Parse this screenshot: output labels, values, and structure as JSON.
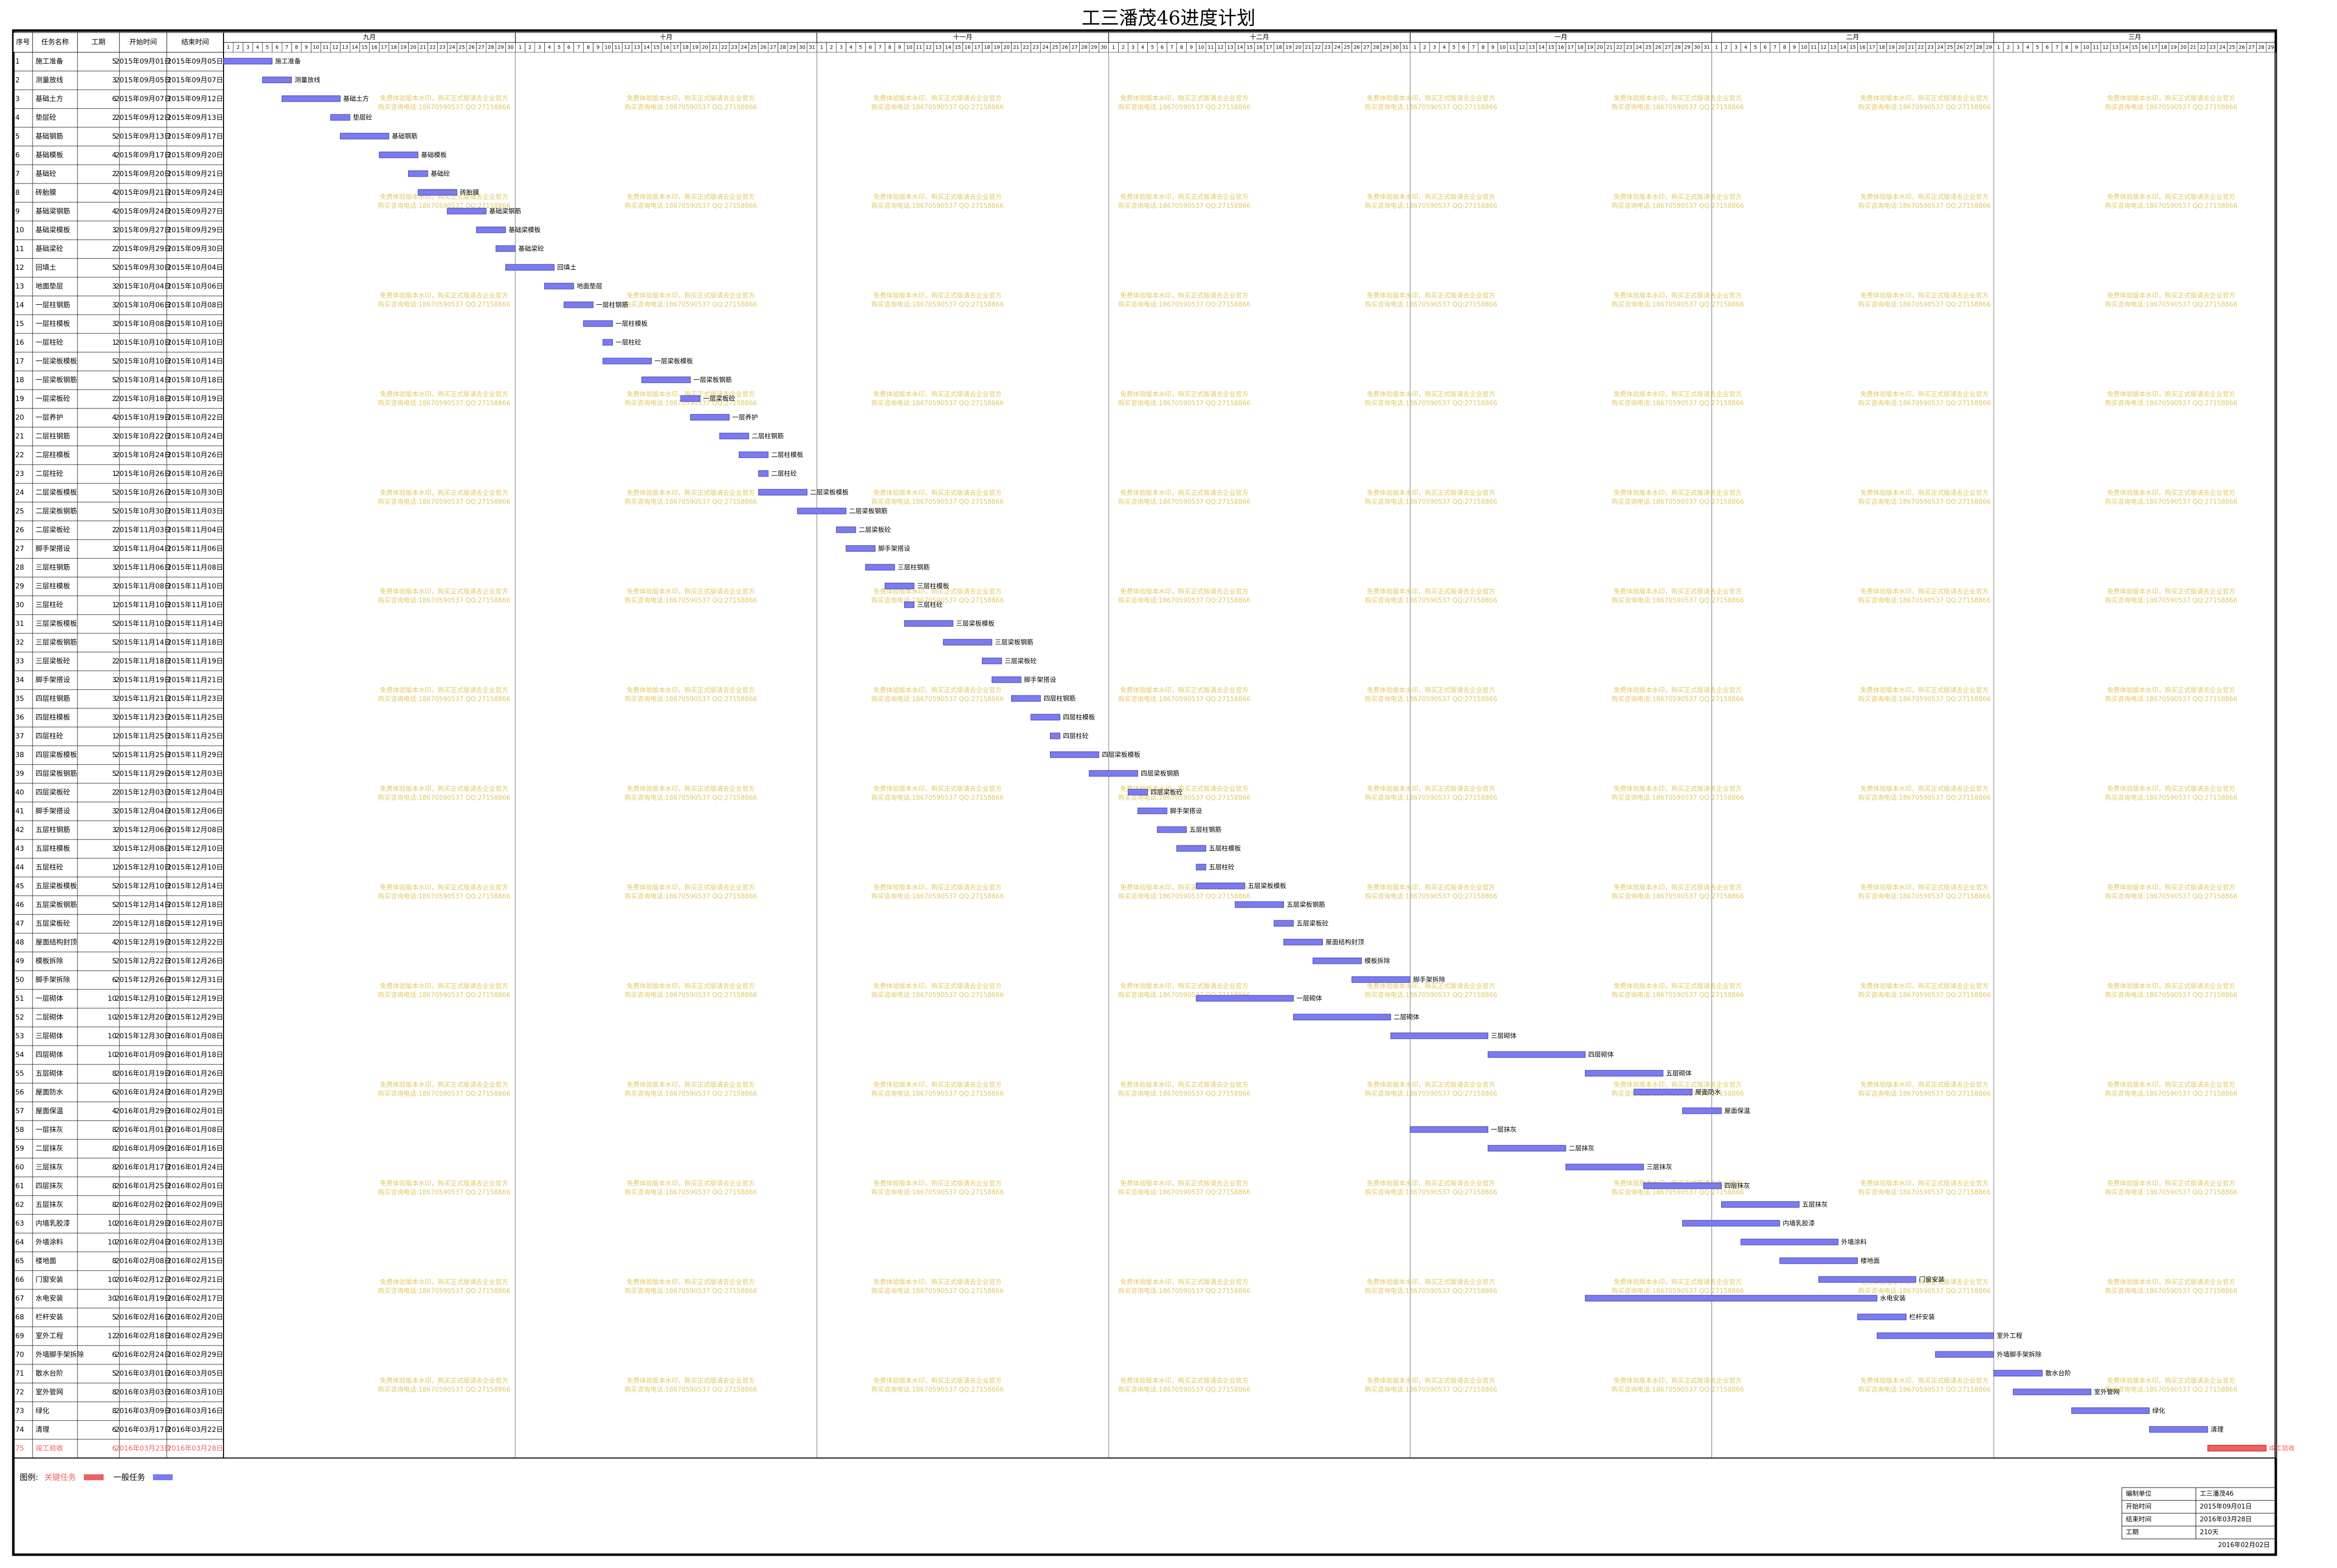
{
  "header": {
    "title": "工三潘茂46进度计划"
  },
  "table": {
    "columns": [
      "序号",
      "任务名称",
      "工期",
      "开始时间",
      "结束时间"
    ],
    "rows": [
      {
        "id": 1,
        "name": "施工准备",
        "duration": 5,
        "start": "2015年09月01日",
        "end": "2015年09月05日"
      },
      {
        "id": 2,
        "name": "测量放线",
        "duration": 3,
        "start": "2015年09月05日",
        "end": "2015年09月07日"
      },
      {
        "id": 3,
        "name": "基础土方",
        "duration": 6,
        "start": "2015年09月07日",
        "end": "2015年09月12日"
      },
      {
        "id": 4,
        "name": "垫层砼",
        "duration": 2,
        "start": "2015年09月12日",
        "end": "2015年09月13日"
      },
      {
        "id": 5,
        "name": "基础钢筋",
        "duration": 5,
        "start": "2015年09月13日",
        "end": "2015年09月17日"
      },
      {
        "id": 6,
        "name": "基础模板",
        "duration": 4,
        "start": "2015年09月17日",
        "end": "2015年09月20日"
      },
      {
        "id": 7,
        "name": "基础砼",
        "duration": 2,
        "start": "2015年09月20日",
        "end": "2015年09月21日"
      },
      {
        "id": 8,
        "name": "砖胎膜",
        "duration": 4,
        "start": "2015年09月21日",
        "end": "2015年09月24日"
      },
      {
        "id": 9,
        "name": "基础梁钢筋",
        "duration": 4,
        "start": "2015年09月24日",
        "end": "2015年09月27日"
      },
      {
        "id": 10,
        "name": "基础梁模板",
        "duration": 3,
        "start": "2015年09月27日",
        "end": "2015年09月29日"
      },
      {
        "id": 11,
        "name": "基础梁砼",
        "duration": 2,
        "start": "2015年09月29日",
        "end": "2015年09月30日"
      },
      {
        "id": 12,
        "name": "回填土",
        "duration": 5,
        "start": "2015年09月30日",
        "end": "2015年10月04日"
      },
      {
        "id": 13,
        "name": "地面垫层",
        "duration": 3,
        "start": "2015年10月04日",
        "end": "2015年10月06日"
      },
      {
        "id": 14,
        "name": "一层柱钢筋",
        "duration": 3,
        "start": "2015年10月06日",
        "end": "2015年10月08日"
      },
      {
        "id": 15,
        "name": "一层柱模板",
        "duration": 3,
        "start": "2015年10月08日",
        "end": "2015年10月10日"
      },
      {
        "id": 16,
        "name": "一层柱砼",
        "duration": 1,
        "start": "2015年10月10日",
        "end": "2015年10月10日"
      },
      {
        "id": 17,
        "name": "一层梁板模板",
        "duration": 5,
        "start": "2015年10月10日",
        "end": "2015年10月14日"
      },
      {
        "id": 18,
        "name": "一层梁板钢筋",
        "duration": 5,
        "start": "2015年10月14日",
        "end": "2015年10月18日"
      },
      {
        "id": 19,
        "name": "一层梁板砼",
        "duration": 2,
        "start": "2015年10月18日",
        "end": "2015年10月19日"
      },
      {
        "id": 20,
        "name": "一层养护",
        "duration": 4,
        "start": "2015年10月19日",
        "end": "2015年10月22日"
      },
      {
        "id": 21,
        "name": "二层柱钢筋",
        "duration": 3,
        "start": "2015年10月22日",
        "end": "2015年10月24日"
      },
      {
        "id": 22,
        "name": "二层柱模板",
        "duration": 3,
        "start": "2015年10月24日",
        "end": "2015年10月26日"
      },
      {
        "id": 23,
        "name": "二层柱砼",
        "duration": 1,
        "start": "2015年10月26日",
        "end": "2015年10月26日"
      },
      {
        "id": 24,
        "name": "二层梁板模板",
        "duration": 5,
        "start": "2015年10月26日",
        "end": "2015年10月30日"
      },
      {
        "id": 25,
        "name": "二层梁板钢筋",
        "duration": 5,
        "start": "2015年10月30日",
        "end": "2015年11月03日"
      },
      {
        "id": 26,
        "name": "二层梁板砼",
        "duration": 2,
        "start": "2015年11月03日",
        "end": "2015年11月04日"
      },
      {
        "id": 27,
        "name": "脚手架搭设",
        "duration": 3,
        "start": "2015年11月04日",
        "end": "2015年11月06日"
      },
      {
        "id": 28,
        "name": "三层柱钢筋",
        "duration": 3,
        "start": "2015年11月06日",
        "end": "2015年11月08日"
      },
      {
        "id": 29,
        "name": "三层柱模板",
        "duration": 3,
        "start": "2015年11月08日",
        "end": "2015年11月10日"
      },
      {
        "id": 30,
        "name": "三层柱砼",
        "duration": 1,
        "start": "2015年11月10日",
        "end": "2015年11月10日"
      },
      {
        "id": 31,
        "name": "三层梁板模板",
        "duration": 5,
        "start": "2015年11月10日",
        "end": "2015年11月14日"
      },
      {
        "id": 32,
        "name": "三层梁板钢筋",
        "duration": 5,
        "start": "2015年11月14日",
        "end": "2015年11月18日"
      },
      {
        "id": 33,
        "name": "三层梁板砼",
        "duration": 2,
        "start": "2015年11月18日",
        "end": "2015年11月19日"
      },
      {
        "id": 34,
        "name": "脚手架搭设",
        "duration": 3,
        "start": "2015年11月19日",
        "end": "2015年11月21日"
      },
      {
        "id": 35,
        "name": "四层柱钢筋",
        "duration": 3,
        "start": "2015年11月21日",
        "end": "2015年11月23日"
      },
      {
        "id": 36,
        "name": "四层柱模板",
        "duration": 3,
        "start": "2015年11月23日",
        "end": "2015年11月25日"
      },
      {
        "id": 37,
        "name": "四层柱砼",
        "duration": 1,
        "start": "2015年11月25日",
        "end": "2015年11月25日"
      },
      {
        "id": 38,
        "name": "四层梁板模板",
        "duration": 5,
        "start": "2015年11月25日",
        "end": "2015年11月29日"
      },
      {
        "id": 39,
        "name": "四层梁板钢筋",
        "duration": 5,
        "start": "2015年11月29日",
        "end": "2015年12月03日"
      },
      {
        "id": 40,
        "name": "四层梁板砼",
        "duration": 2,
        "start": "2015年12月03日",
        "end": "2015年12月04日"
      },
      {
        "id": 41,
        "name": "脚手架搭设",
        "duration": 3,
        "start": "2015年12月04日",
        "end": "2015年12月06日"
      },
      {
        "id": 42,
        "name": "五层柱钢筋",
        "duration": 3,
        "start": "2015年12月06日",
        "end": "2015年12月08日"
      },
      {
        "id": 43,
        "name": "五层柱模板",
        "duration": 3,
        "start": "2015年12月08日",
        "end": "2015年12月10日"
      },
      {
        "id": 44,
        "name": "五层柱砼",
        "duration": 1,
        "start": "2015年12月10日",
        "end": "2015年12月10日"
      },
      {
        "id": 45,
        "name": "五层梁板模板",
        "duration": 5,
        "start": "2015年12月10日",
        "end": "2015年12月14日"
      },
      {
        "id": 46,
        "name": "五层梁板钢筋",
        "duration": 5,
        "start": "2015年12月14日",
        "end": "2015年12月18日"
      },
      {
        "id": 47,
        "name": "五层梁板砼",
        "duration": 2,
        "start": "2015年12月18日",
        "end": "2015年12月19日"
      },
      {
        "id": 48,
        "name": "屋面结构封顶",
        "duration": 4,
        "start": "2015年12月19日",
        "end": "2015年12月22日"
      },
      {
        "id": 49,
        "name": "模板拆除",
        "duration": 5,
        "start": "2015年12月22日",
        "end": "2015年12月26日"
      },
      {
        "id": 50,
        "name": "脚手架拆除",
        "duration": 6,
        "start": "2015年12月26日",
        "end": "2015年12月31日"
      },
      {
        "id": 51,
        "name": "一层砌体",
        "duration": 10,
        "start": "2015年12月10日",
        "end": "2015年12月19日"
      },
      {
        "id": 52,
        "name": "二层砌体",
        "duration": 10,
        "start": "2015年12月20日",
        "end": "2015年12月29日"
      },
      {
        "id": 53,
        "name": "三层砌体",
        "duration": 10,
        "start": "2015年12月30日",
        "end": "2016年01月08日"
      },
      {
        "id": 54,
        "name": "四层砌体",
        "duration": 10,
        "start": "2016年01月09日",
        "end": "2016年01月18日"
      },
      {
        "id": 55,
        "name": "五层砌体",
        "duration": 8,
        "start": "2016年01月19日",
        "end": "2016年01月26日"
      },
      {
        "id": 56,
        "name": "屋面防水",
        "duration": 6,
        "start": "2016年01月24日",
        "end": "2016年01月29日"
      },
      {
        "id": 57,
        "name": "屋面保温",
        "duration": 4,
        "start": "2016年01月29日",
        "end": "2016年02月01日"
      },
      {
        "id": 58,
        "name": "一层抹灰",
        "duration": 8,
        "start": "2016年01月01日",
        "end": "2016年01月08日"
      },
      {
        "id": 59,
        "name": "二层抹灰",
        "duration": 8,
        "start": "2016年01月09日",
        "end": "2016年01月16日"
      },
      {
        "id": 60,
        "name": "三层抹灰",
        "duration": 8,
        "start": "2016年01月17日",
        "end": "2016年01月24日"
      },
      {
        "id": 61,
        "name": "四层抹灰",
        "duration": 8,
        "start": "2016年01月25日",
        "end": "2016年02月01日"
      },
      {
        "id": 62,
        "name": "五层抹灰",
        "duration": 8,
        "start": "2016年02月02日",
        "end": "2016年02月09日"
      },
      {
        "id": 63,
        "name": "内墙乳胶漆",
        "duration": 10,
        "start": "2016年01月29日",
        "end": "2016年02月07日"
      },
      {
        "id": 64,
        "name": "外墙涂料",
        "duration": 10,
        "start": "2016年02月04日",
        "end": "2016年02月13日"
      },
      {
        "id": 65,
        "name": "楼地面",
        "duration": 8,
        "start": "2016年02月08日",
        "end": "2016年02月15日"
      },
      {
        "id": 66,
        "name": "门窗安装",
        "duration": 10,
        "start": "2016年02月12日",
        "end": "2016年02月21日"
      },
      {
        "id": 67,
        "name": "水电安装",
        "duration": 30,
        "start": "2016年01月19日",
        "end": "2016年02月17日"
      },
      {
        "id": 68,
        "name": "栏杆安装",
        "duration": 5,
        "start": "2016年02月16日",
        "end": "2016年02月20日"
      },
      {
        "id": 69,
        "name": "室外工程",
        "duration": 12,
        "start": "2016年02月18日",
        "end": "2016年02月29日"
      },
      {
        "id": 70,
        "name": "外墙脚手架拆除",
        "duration": 6,
        "start": "2016年02月24日",
        "end": "2016年02月29日"
      },
      {
        "id": 71,
        "name": "散水台阶",
        "duration": 5,
        "start": "2016年03月01日",
        "end": "2016年03月05日"
      },
      {
        "id": 72,
        "name": "室外管网",
        "duration": 8,
        "start": "2016年03月03日",
        "end": "2016年03月10日"
      },
      {
        "id": 73,
        "name": "绿化",
        "duration": 8,
        "start": "2016年03月09日",
        "end": "2016年03月16日"
      },
      {
        "id": 74,
        "name": "清理",
        "duration": 6,
        "start": "2016年03月17日",
        "end": "2016年03月22日"
      },
      {
        "id": 75,
        "name": "竣工验收",
        "duration": 6,
        "start": "2016年03月23日",
        "end": "2016年03月28日",
        "critical": true
      }
    ]
  },
  "timeline": {
    "months": [
      {
        "label": "九月",
        "days": [
          1,
          2,
          3,
          4,
          5,
          6,
          7,
          8,
          9,
          10,
          11,
          12,
          13,
          14,
          15,
          16,
          17,
          18,
          19,
          20,
          21,
          22,
          23,
          24,
          25,
          26,
          27,
          28,
          29,
          30
        ]
      },
      {
        "label": "十月",
        "days": [
          1,
          2,
          3,
          4,
          5,
          6,
          7,
          8,
          9,
          10,
          11,
          12,
          13,
          14,
          15,
          16,
          17,
          18,
          19,
          20,
          21,
          22,
          23,
          24,
          25,
          26,
          27,
          28,
          29,
          30,
          31
        ]
      },
      {
        "label": "十一月",
        "days": [
          1,
          2,
          3,
          4,
          5,
          6,
          7,
          8,
          9,
          10,
          11,
          12,
          13,
          14,
          15,
          16,
          17,
          18,
          19,
          20,
          21,
          22,
          23,
          24,
          25,
          26,
          27,
          28,
          29,
          30
        ]
      },
      {
        "label": "十二月",
        "days": [
          1,
          2,
          3,
          4,
          5,
          6,
          7,
          8,
          9,
          10,
          11,
          12,
          13,
          14,
          15,
          16,
          17,
          18,
          19,
          20,
          21,
          22,
          23,
          24,
          25,
          26,
          27,
          28,
          29,
          30,
          31
        ]
      },
      {
        "label": "一月",
        "days": [
          1,
          2,
          3,
          4,
          5,
          6,
          7,
          8,
          9,
          10,
          11,
          12,
          13,
          14,
          15,
          16,
          17,
          18,
          19,
          20,
          21,
          22,
          23,
          24,
          25,
          26,
          27,
          28,
          29,
          30,
          31
        ]
      },
      {
        "label": "二月",
        "days": [
          1,
          2,
          3,
          4,
          5,
          6,
          7,
          8,
          9,
          10,
          11,
          12,
          13,
          14,
          15,
          16,
          17,
          18,
          19,
          20,
          21,
          22,
          23,
          24,
          25,
          26,
          27,
          28,
          29
        ]
      },
      {
        "label": "三月",
        "days": [
          1,
          2,
          3,
          4,
          5,
          6,
          7,
          8,
          9,
          10,
          11,
          12,
          13,
          14,
          15,
          16,
          17,
          18,
          19,
          20,
          21,
          22,
          23,
          24,
          25,
          26,
          27,
          28,
          29
        ]
      }
    ]
  },
  "colors": {
    "normal": "#7b7bf0",
    "critical": "#f06060"
  },
  "legend": {
    "title": "图例:",
    "critical": "关键任务",
    "normal": "一般任务"
  },
  "watermark": [
    "免费体验版本水印，购买正式版请去企业官方",
    "购买咨询电话:18670590537 QQ:27158866"
  ],
  "title_block": {
    "rows": [
      [
        "编制单位",
        "工三潘茂46"
      ],
      [
        "开始时间",
        "2015年09月01日"
      ],
      [
        "结束时间",
        "2016年03月28日"
      ],
      [
        "工期",
        "210天"
      ]
    ],
    "date": "2016年02月02日"
  }
}
